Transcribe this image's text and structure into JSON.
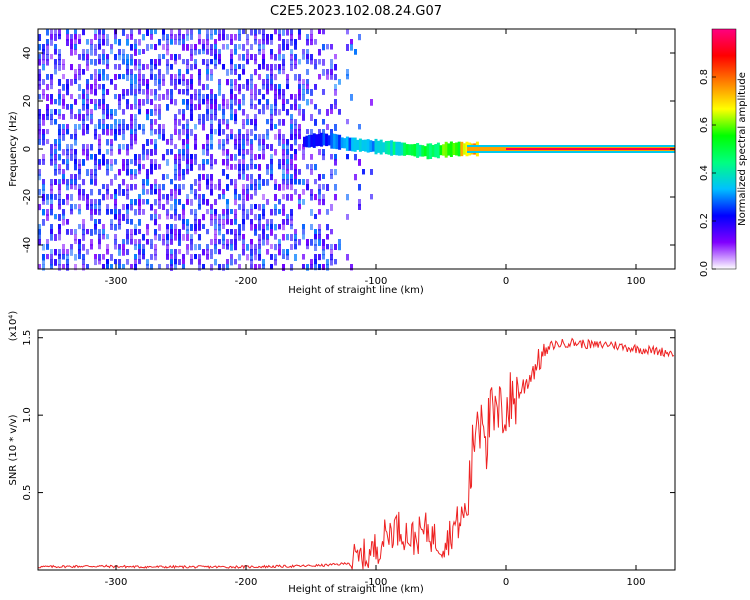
{
  "title": "C2E5.2023.102.08.24.G07",
  "chart_data": [
    {
      "type": "heatmap",
      "xlabel": "Height of straight line (km)",
      "ylabel": "Frequency (Hz)",
      "xlim": [
        -360,
        130
      ],
      "ylim": [
        -50,
        50
      ],
      "xticks": [
        -300,
        -200,
        -100,
        0,
        100
      ],
      "yticks": [
        -40,
        -20,
        0,
        20,
        40
      ],
      "colorbar": {
        "label": "Normalized spectral amplitude",
        "range": [
          0.0,
          1.0
        ],
        "ticks": [
          "0.0",
          "0.2",
          "0.4",
          "0.6",
          "0.8"
        ],
        "colors": [
          "#ffffff",
          "#8000ff",
          "#0000ff",
          "#00c0ff",
          "#00ff80",
          "#00ff00",
          "#ffff00",
          "#ff8000",
          "#ff0000",
          "#ff0080"
        ]
      },
      "signal_track": [
        {
          "x": -155,
          "y": 3,
          "amp": 0.25
        },
        {
          "x": -140,
          "y": 4,
          "amp": 0.3
        },
        {
          "x": -120,
          "y": 2,
          "amp": 0.35
        },
        {
          "x": -100,
          "y": 1,
          "amp": 0.4
        },
        {
          "x": -80,
          "y": 0,
          "amp": 0.5
        },
        {
          "x": -60,
          "y": -1,
          "amp": 0.55
        },
        {
          "x": -40,
          "y": 0,
          "amp": 0.7
        },
        {
          "x": -20,
          "y": 0,
          "amp": 0.85
        },
        {
          "x": 0,
          "y": 0,
          "amp": 1.0
        },
        {
          "x": 130,
          "y": 0,
          "amp": 1.0
        }
      ]
    },
    {
      "type": "line",
      "xlabel": "Height of straight line (km)",
      "ylabel": "SNR (10 * v/v)",
      "yscale_label": "(x10⁴)",
      "xlim": [
        -360,
        130
      ],
      "ylim": [
        0,
        1.55
      ],
      "xticks": [
        -300,
        -200,
        -100,
        0,
        100
      ],
      "yticks": [
        0.5,
        1.0,
        1.5
      ],
      "ytick_labels": [
        "0.5",
        "1.0",
        "1.5"
      ],
      "color": "#ee2222",
      "series": [
        {
          "x": [
            -360,
            -320,
            -280,
            -240,
            -200,
            -160,
            -140,
            -125,
            -115,
            -105,
            -100,
            -95,
            -90,
            -85,
            -80,
            -75,
            -70,
            -65,
            -60,
            -55,
            -50,
            -45,
            -40,
            -35,
            -30,
            -28,
            -25,
            -22,
            -20,
            -18,
            -15,
            -12,
            -10,
            -5,
            0,
            5,
            10,
            15,
            20,
            25,
            30,
            35,
            40,
            50,
            60,
            70,
            80,
            90,
            100,
            110,
            120,
            130
          ],
          "y": [
            0.02,
            0.025,
            0.02,
            0.02,
            0.02,
            0.025,
            0.03,
            0.04,
            0.06,
            0.1,
            0.14,
            0.2,
            0.24,
            0.28,
            0.26,
            0.22,
            0.2,
            0.24,
            0.26,
            0.2,
            0.18,
            0.2,
            0.28,
            0.32,
            0.4,
            0.55,
            0.8,
            1.05,
            0.95,
            1.1,
            0.85,
            1.0,
            0.95,
            1.0,
            1.05,
            1.1,
            1.15,
            1.2,
            1.28,
            1.35,
            1.4,
            1.45,
            1.46,
            1.47,
            1.46,
            1.45,
            1.46,
            1.44,
            1.43,
            1.42,
            1.41,
            1.4
          ]
        }
      ]
    }
  ]
}
